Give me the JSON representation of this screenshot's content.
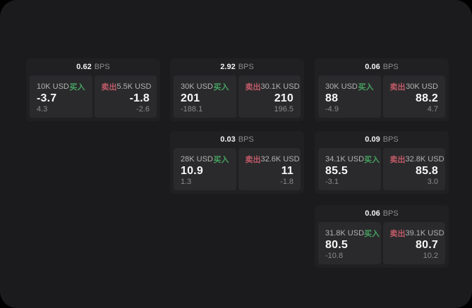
{
  "surface": {
    "background": "#1b1b1d"
  },
  "labels": {
    "bps_unit": "BPS",
    "buy": "买入",
    "sell": "卖出"
  },
  "colors": {
    "buy_accent": "#46a061",
    "sell_accent": "#c05a68",
    "card_background": "#202023",
    "tile_background": "#2a2a2c"
  },
  "cards": [
    {
      "bps": "0.62",
      "col": 0,
      "row": 0,
      "buy": {
        "size": "10K USD",
        "value": "-3.7",
        "delta": "4.3"
      },
      "sell": {
        "size": "5.5K USD",
        "value": "-1.8",
        "delta": "-2.6"
      }
    },
    {
      "bps": "2.92",
      "col": 1,
      "row": 0,
      "buy": {
        "size": "30K USD",
        "value": "201",
        "delta": "-188.1"
      },
      "sell": {
        "size": "30.1K USD",
        "value": "210",
        "delta": "196.5"
      }
    },
    {
      "bps": "0.06",
      "col": 2,
      "row": 0,
      "buy": {
        "size": "30K USD",
        "value": "88",
        "delta": "-4.9"
      },
      "sell": {
        "size": "30K USD",
        "value": "88.2",
        "delta": "4.7"
      }
    },
    {
      "bps": "0.03",
      "col": 1,
      "row": 1,
      "buy": {
        "size": "28K USD",
        "value": "10.9",
        "delta": "1.3"
      },
      "sell": {
        "size": "32.6K USD",
        "value": "11",
        "delta": "-1.8"
      }
    },
    {
      "bps": "0.09",
      "col": 2,
      "row": 1,
      "buy": {
        "size": "34.1K USD",
        "value": "85.5",
        "delta": "-3.1"
      },
      "sell": {
        "size": "32.8K USD",
        "value": "85.8",
        "delta": "3.0"
      }
    },
    {
      "bps": "0.06",
      "col": 2,
      "row": 2,
      "buy": {
        "size": "31.8K USD",
        "value": "80.5",
        "delta": "-10.8"
      },
      "sell": {
        "size": "39.1K USD",
        "value": "80.7",
        "delta": "10.2"
      }
    }
  ]
}
